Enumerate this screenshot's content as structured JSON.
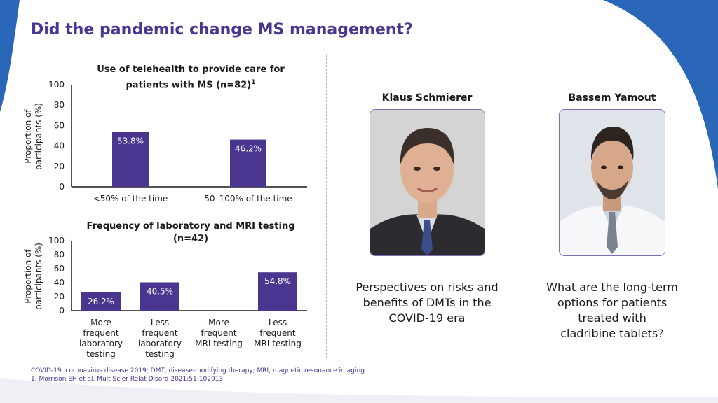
{
  "title": "Did the pandemic change MS management?",
  "chart_data": [
    {
      "type": "bar",
      "title": "Use of telehealth to provide care for patients with MS (n=82)",
      "title_superscript": "1",
      "ylabel": "Proportion of participants (%)",
      "ylabel_lines": [
        "Proportion of",
        "participants (%)"
      ],
      "categories": [
        "<50% of the time",
        "50–100% of the time"
      ],
      "category_lines": [
        [
          "<50% of the time"
        ],
        [
          "50–100% of the time"
        ]
      ],
      "values": [
        53.8,
        46.2
      ],
      "value_labels": [
        "53.8%",
        "46.2%"
      ],
      "ylim": [
        0,
        100
      ],
      "yticks": [
        0,
        20,
        40,
        60,
        80,
        100
      ],
      "grid": false,
      "bar_color": "#4a3591"
    },
    {
      "type": "bar",
      "title": "Frequency of laboratory and MRI testing (n=42)",
      "ylabel": "Proportion of participants (%)",
      "ylabel_lines": [
        "Proportion of",
        "participants (%)"
      ],
      "categories": [
        "More frequent laboratory testing",
        "Less frequent laboratory testing",
        "More frequent MRI testing",
        "Less frequent MRI testing"
      ],
      "category_lines": [
        [
          "More",
          "frequent",
          "laboratory",
          "testing"
        ],
        [
          "Less",
          "frequent",
          "laboratory",
          "testing"
        ],
        [
          "More",
          "frequent",
          "MRI testing"
        ],
        [
          "Less",
          "frequent",
          "MRI testing"
        ]
      ],
      "values": [
        26.2,
        40.5,
        null,
        54.8
      ],
      "value_labels": [
        "26.2%",
        "40.5%",
        "",
        "54.8%"
      ],
      "ylim": [
        0,
        100
      ],
      "yticks": [
        0,
        20,
        40,
        60,
        80,
        100
      ],
      "grid": false,
      "bar_color": "#4a3591"
    }
  ],
  "people": [
    {
      "name": "Klaus Schmierer",
      "caption_lines": [
        "Perspectives on risks and",
        "benefits of DMTs in the",
        "COVID-19 era"
      ]
    },
    {
      "name": "Bassem Yamout",
      "caption_lines": [
        "What are the long-term",
        "options for patients",
        "treated with",
        "cladribine tablets?"
      ]
    }
  ],
  "footnotes": [
    "COVID-19, coronavirus disease 2019; DMT, disease-modifying therapy; MRI, magnetic resonance imaging",
    "1. Morrison EH et al. Mult Scler Relat Disord 2021;51:102913"
  ],
  "colors": {
    "accent": "#4a3591",
    "background_shape": "#2a67b8",
    "photo_border": "#7f6fb0"
  }
}
